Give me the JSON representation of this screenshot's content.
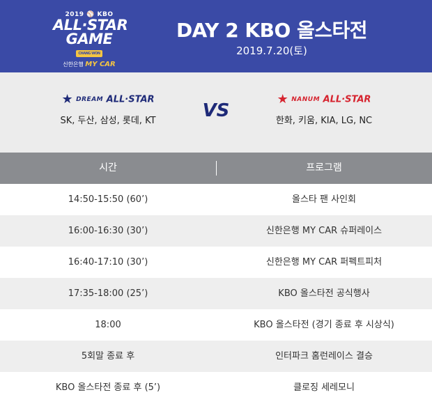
{
  "colors": {
    "header_bg": "#3a4aa6",
    "dream": "#1e2a78",
    "nanum": "#d6242f",
    "table_head": "#8a8c90"
  },
  "logo": {
    "year": "2019",
    "league": "KBO",
    "line1": "ALL·STAR",
    "line2": "GAME",
    "venue": "CHANG WON",
    "sponsor_prefix": "신한은행",
    "sponsor": "MY CAR"
  },
  "header": {
    "title": "DAY 2 KBO 올스타전",
    "date": "2019.7.20(토)"
  },
  "teams": {
    "left": {
      "prefix": "DREAM",
      "name": "ALL·STAR",
      "members": "SK, 두산, 삼성, 롯데, KT",
      "icon": "star-icon"
    },
    "vs": "VS",
    "right": {
      "prefix": "NANUM",
      "name": "ALL·STAR",
      "members": "한화, 키움, KIA, LG, NC",
      "icon": "star-icon"
    }
  },
  "table": {
    "headers": [
      "시간",
      "프로그램"
    ],
    "rows": [
      {
        "time": "14:50-15:50 (60’)",
        "program": "올스타 팬 사인회"
      },
      {
        "time": "16:00-16:30 (30’)",
        "program": "신한은행 MY CAR 슈퍼레이스"
      },
      {
        "time": "16:40-17:10 (30’)",
        "program": "신한은행 MY CAR 퍼펙트피처"
      },
      {
        "time": "17:35-18:00 (25’)",
        "program": "KBO 올스타전 공식행사"
      },
      {
        "time": "18:00",
        "program": "KBO 올스타전 (경기 종료 후 시상식)"
      },
      {
        "time": "5회말 종료 후",
        "program": "인터파크 홈런레이스 결승"
      },
      {
        "time": "KBO 올스타전 종료 후 (5’)",
        "program": "클로징 세레모니"
      }
    ]
  }
}
